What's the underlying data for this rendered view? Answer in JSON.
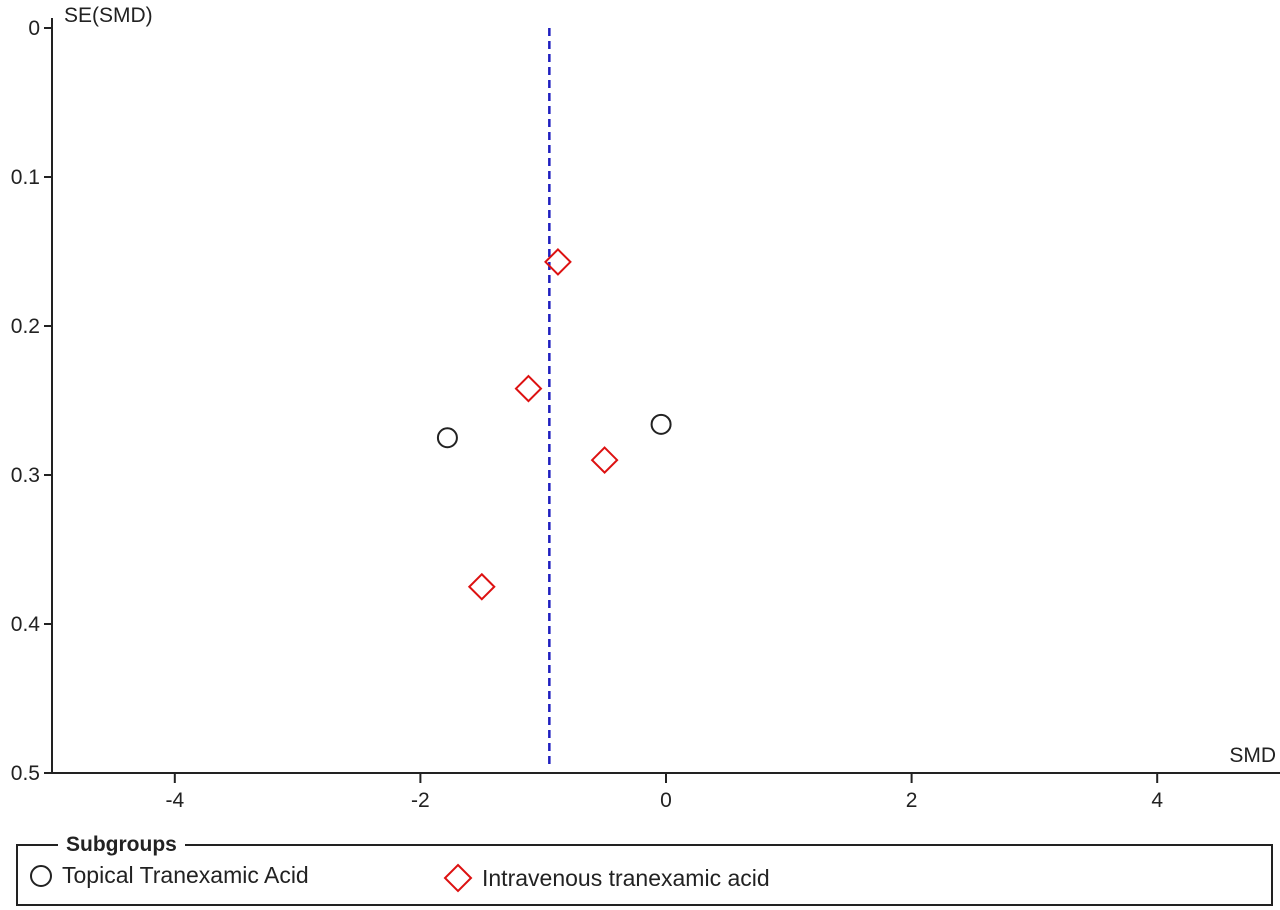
{
  "chart_data": {
    "type": "scatter",
    "title": "",
    "xlabel": "SMD",
    "ylabel": "SE(SMD)",
    "xlim": [
      -5,
      5
    ],
    "ylim": [
      0,
      0.5
    ],
    "y_inverted": true,
    "x_ticks": [
      "-4",
      "-2",
      "0",
      "2",
      "4"
    ],
    "x_tick_values": [
      -4,
      -2,
      0,
      2,
      4
    ],
    "y_ticks": [
      "0",
      "0.1",
      "0.2",
      "0.3",
      "0.4",
      "0.5"
    ],
    "y_tick_values": [
      0,
      0.1,
      0.2,
      0.3,
      0.4,
      0.5
    ],
    "reference_line": {
      "x": -0.95,
      "style": "dashed",
      "color": "#1f1fbf"
    },
    "series": [
      {
        "name": "Topical Tranexamic Acid",
        "marker": "circle",
        "color": "#222222",
        "points": [
          {
            "x": -1.78,
            "y": 0.275
          },
          {
            "x": -0.04,
            "y": 0.266
          }
        ]
      },
      {
        "name": "Intravenous tranexamic acid",
        "marker": "diamond",
        "color": "#dd1111",
        "points": [
          {
            "x": -0.88,
            "y": 0.157
          },
          {
            "x": -1.12,
            "y": 0.242
          },
          {
            "x": -0.5,
            "y": 0.29
          },
          {
            "x": -1.5,
            "y": 0.375
          }
        ]
      }
    ],
    "legend": {
      "title": "Subgroups",
      "position": "bottom"
    }
  }
}
